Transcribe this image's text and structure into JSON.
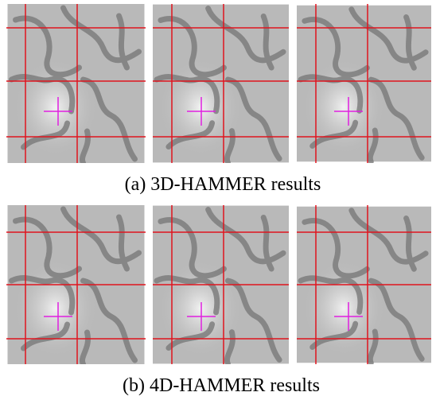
{
  "figure": {
    "captions": [
      "(a) 3D-HAMMER results",
      "(b) 4D-HAMMER results"
    ]
  }
}
